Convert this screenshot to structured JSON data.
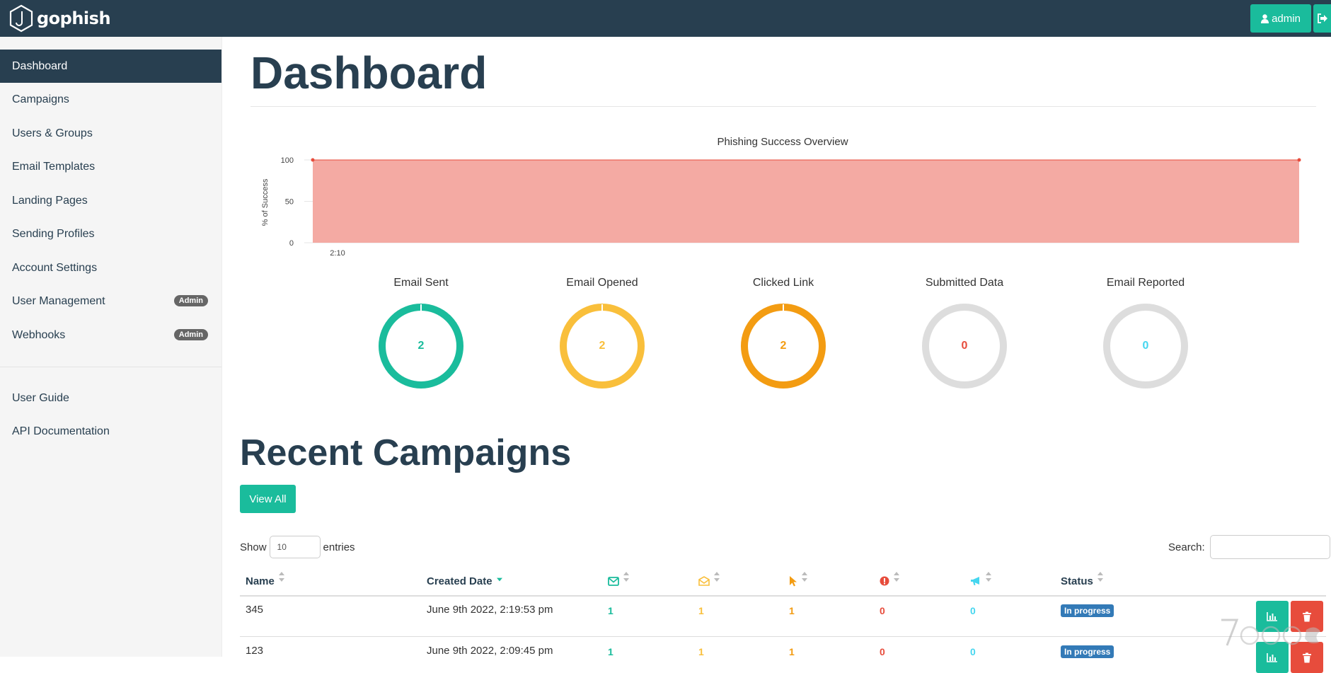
{
  "app": {
    "brand": "gophish",
    "user_label": "admin"
  },
  "sidebar": {
    "items": [
      {
        "label": "Dashboard",
        "active": true
      },
      {
        "label": "Campaigns"
      },
      {
        "label": "Users & Groups"
      },
      {
        "label": "Email Templates"
      },
      {
        "label": "Landing Pages"
      },
      {
        "label": "Sending Profiles"
      },
      {
        "label": "Account Settings"
      },
      {
        "label": "User Management",
        "badge": "Admin"
      },
      {
        "label": "Webhooks",
        "badge": "Admin"
      }
    ],
    "secondary": [
      {
        "label": "User Guide"
      },
      {
        "label": "API Documentation"
      }
    ]
  },
  "page": {
    "title": "Dashboard"
  },
  "chart_data": {
    "type": "area",
    "title": "Phishing Success Overview",
    "ylabel": "% of Success",
    "xlabel": "",
    "ylim": [
      0,
      100
    ],
    "yticks": [
      0,
      50,
      100
    ],
    "x_tick_labels": [
      "2:10"
    ],
    "series": [
      {
        "values": [
          100,
          100
        ]
      }
    ],
    "colors": {
      "fill": "#f4aaa3",
      "line": "#e74c3c"
    }
  },
  "stats": [
    {
      "label": "Email Sent",
      "value": "2",
      "color": "#1abc9c",
      "filled": true
    },
    {
      "label": "Email Opened",
      "value": "2",
      "color": "#f9bf3b",
      "filled": true
    },
    {
      "label": "Clicked Link",
      "value": "2",
      "color": "#f39c12",
      "filled": true
    },
    {
      "label": "Submitted Data",
      "value": "0",
      "color": "#e74c3c",
      "filled": false
    },
    {
      "label": "Email Reported",
      "value": "0",
      "color": "#45d6ef",
      "filled": false
    }
  ],
  "recent": {
    "title": "Recent Campaigns",
    "view_all": "View All",
    "show_label": "Show",
    "entries_value": "10",
    "entries_label": "entries",
    "search_label": "Search:",
    "columns": {
      "name": "Name",
      "created": "Created Date",
      "sent_icon": "envelope-icon",
      "opened_icon": "envelope-open-icon",
      "clicked_icon": "mouse-pointer-icon",
      "submitted_icon": "exclamation-circle-icon",
      "reported_icon": "bullhorn-icon",
      "status": "Status"
    },
    "rows": [
      {
        "name": "345",
        "created": "June 9th 2022, 2:19:53 pm",
        "sent": "1",
        "opened": "1",
        "clicked": "1",
        "submitted": "0",
        "reported": "0",
        "status": "In progress"
      },
      {
        "name": "123",
        "created": "June 9th 2022, 2:09:45 pm",
        "sent": "1",
        "opened": "1",
        "clicked": "1",
        "submitted": "0",
        "reported": "0",
        "status": "In progress"
      }
    ]
  },
  "colors": {
    "navy": "#283f50",
    "teal": "#1abc9c",
    "red": "#e74c3c",
    "yellow": "#f9bf3b",
    "orange": "#f39c12",
    "cyan": "#45d6ef"
  }
}
